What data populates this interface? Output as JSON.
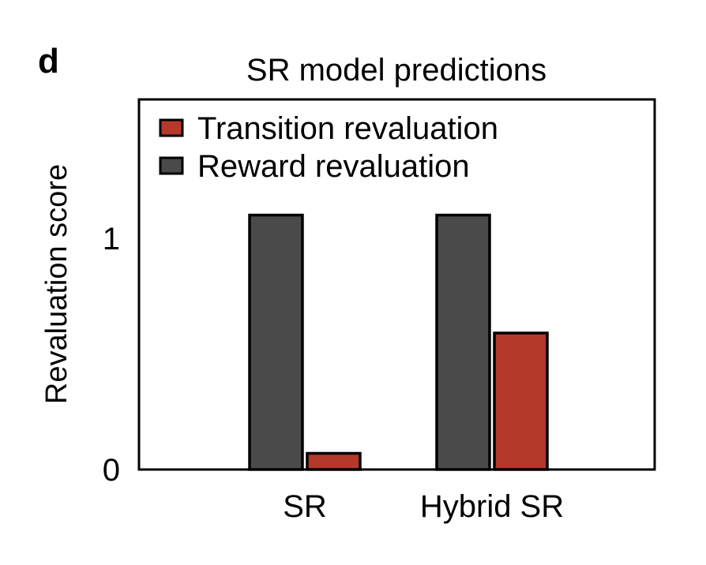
{
  "panel_label": "d",
  "chart_data": {
    "type": "bar",
    "title": "SR model predictions",
    "xlabel": "",
    "ylabel": "Revaluation score",
    "categories": [
      "SR",
      "Hybrid SR"
    ],
    "ylim": [
      0,
      1.6
    ],
    "yticks": [
      0,
      1
    ],
    "ytick_labels": [
      "0",
      "1"
    ],
    "series": [
      {
        "name": "Reward revaluation",
        "color": "#4a4a4a",
        "values": [
          1.1,
          1.1
        ]
      },
      {
        "name": "Transition revaluation",
        "color": "#b5392b",
        "values": [
          0.07,
          0.59
        ]
      }
    ],
    "legend": {
      "placement": "top-left",
      "order": [
        "Transition revaluation",
        "Reward revaluation"
      ]
    },
    "grid": false
  }
}
